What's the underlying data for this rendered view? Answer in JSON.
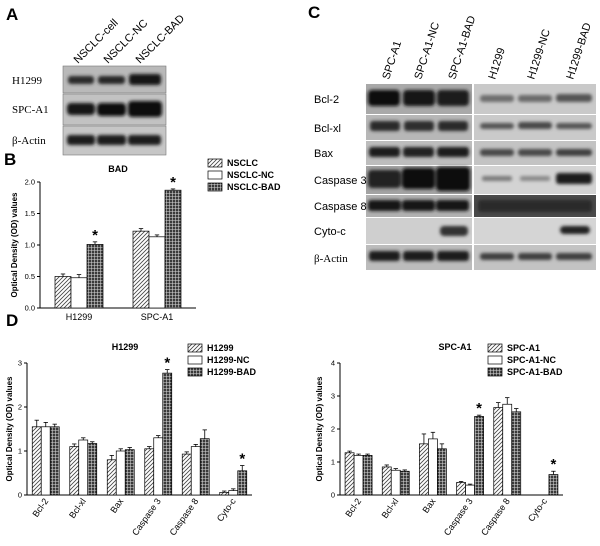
{
  "panel_letters": [
    "A",
    "B",
    "C",
    "D"
  ],
  "panel_a": {
    "columns": [
      "NSCLC-cell",
      "NSCLC-NC",
      "NSCLC-BAD"
    ],
    "rows": [
      "H1299",
      "SPC-A1",
      "β-Actin"
    ]
  },
  "panel_c": {
    "columns": [
      "SPC-A1",
      "SPC-A1-NC",
      "SPC-A1-BAD",
      "H1299",
      "H1299-NC",
      "H1299-BAD"
    ],
    "rows": [
      "Bcl-2",
      "Bcl-xl",
      "Bax",
      "Caspase 3",
      "Caspase 8",
      "Cyto-c",
      "β-Actin"
    ]
  },
  "significance_marker": "*",
  "chart_data": [
    {
      "type": "bar",
      "title": "BAD",
      "ylabel": "Optical Density (OD) values",
      "ylim": [
        0,
        2.0
      ],
      "yticks": [
        "0.0",
        "0.5",
        "1.0",
        "1.5",
        "2.0"
      ],
      "categories": [
        "H1299",
        "SPC-A1"
      ],
      "series": [
        {
          "name": "NSCLC",
          "values": [
            0.5,
            1.22
          ],
          "errors": [
            0.04,
            0.04
          ]
        },
        {
          "name": "NSCLC-NC",
          "values": [
            0.48,
            1.13
          ],
          "errors": [
            0.05,
            0.03
          ]
        },
        {
          "name": "NSCLC-BAD",
          "values": [
            1.01,
            1.87
          ],
          "errors": [
            0.04,
            0.02
          ]
        }
      ],
      "significant": [
        [
          false,
          false,
          true
        ],
        [
          false,
          false,
          true
        ]
      ],
      "legend": "top-right"
    },
    {
      "type": "bar",
      "title": "H1299",
      "ylabel": "Optical Density (OD) values",
      "ylim": [
        0,
        3
      ],
      "yticks": [
        "0",
        "1",
        "2",
        "3"
      ],
      "categories": [
        "Bcl-2",
        "Bcl-xl",
        "Bax",
        "Caspase 3",
        "Caspase 8",
        "Cyto-c"
      ],
      "series": [
        {
          "name": "H1299",
          "values": [
            1.55,
            1.1,
            0.8,
            1.05,
            0.93,
            0.06
          ],
          "errors": [
            0.15,
            0.06,
            0.1,
            0.05,
            0.05,
            0.03
          ]
        },
        {
          "name": "H1299-NC",
          "values": [
            1.55,
            1.25,
            1.0,
            1.3,
            1.1,
            0.1
          ],
          "errors": [
            0.1,
            0.05,
            0.05,
            0.05,
            0.05,
            0.04
          ]
        },
        {
          "name": "H1299-BAD",
          "values": [
            1.55,
            1.17,
            1.03,
            2.77,
            1.28,
            0.55
          ],
          "errors": [
            0.06,
            0.04,
            0.05,
            0.08,
            0.2,
            0.12
          ]
        }
      ],
      "significant": [
        [
          false,
          false,
          false
        ],
        [
          false,
          false,
          false
        ],
        [
          false,
          false,
          false
        ],
        [
          false,
          false,
          true
        ],
        [
          false,
          false,
          false
        ],
        [
          false,
          false,
          true
        ]
      ],
      "legend": "top-right"
    },
    {
      "type": "bar",
      "title": "SPC-A1",
      "ylabel": "Optical Density (OD) values",
      "ylim": [
        0,
        4
      ],
      "yticks": [
        "0",
        "1",
        "2",
        "3",
        "4"
      ],
      "categories": [
        "Bcl-2",
        "Bcl-xl",
        "Bax",
        "Caspase 3",
        "Caspase 8",
        "Cyto-c"
      ],
      "series": [
        {
          "name": "SPC-A1",
          "values": [
            1.28,
            0.85,
            1.55,
            0.38,
            2.65,
            0.0
          ],
          "errors": [
            0.05,
            0.06,
            0.3,
            0.03,
            0.15,
            0.0
          ]
        },
        {
          "name": "SPC-A1-NC",
          "values": [
            1.2,
            0.75,
            1.7,
            0.3,
            2.75,
            0.0
          ],
          "errors": [
            0.04,
            0.05,
            0.2,
            0.03,
            0.2,
            0.0
          ]
        },
        {
          "name": "SPC-A1-BAD",
          "values": [
            1.2,
            0.72,
            1.4,
            2.38,
            2.52,
            0.62
          ],
          "errors": [
            0.04,
            0.04,
            0.15,
            0.04,
            0.1,
            0.1
          ]
        }
      ],
      "significant": [
        [
          false,
          false,
          false
        ],
        [
          false,
          false,
          false
        ],
        [
          false,
          false,
          false
        ],
        [
          false,
          false,
          true
        ],
        [
          false,
          false,
          false
        ],
        [
          false,
          false,
          true
        ]
      ],
      "legend": "top-right"
    }
  ]
}
